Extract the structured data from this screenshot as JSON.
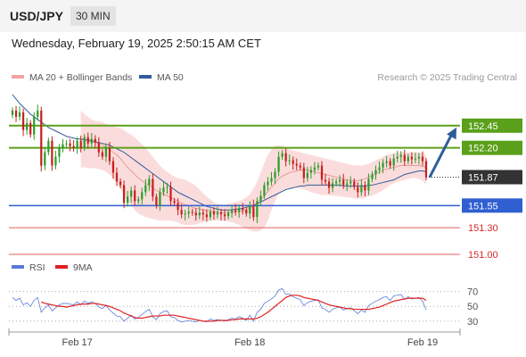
{
  "header": {
    "pair": "USD/JPY",
    "timeframe": "30 MIN",
    "datetime": "Wednesday, February 19, 2025 2:50:15 AM CET"
  },
  "colors": {
    "bollinger": "#f4a3a3",
    "ma20": "#e89a9a",
    "ma50": "#2f5d9a",
    "candle_up": "#2a9d2a",
    "candle_down": "#c81e1e",
    "resistance": "#5aa01a",
    "support": "#2f5fd0",
    "support_weak": "#e06060",
    "current": "#333333",
    "arrow": "#2f5d9a",
    "rsi": "#5a78d8",
    "rsi_ma": "#e02020"
  },
  "chart_data": [
    {
      "type": "candlestick",
      "legend": [
        {
          "name": "MA 20 + Bollinger Bands",
          "color": "#f4a3a3"
        },
        {
          "name": "MA 50",
          "color": "#2f5d9a"
        }
      ],
      "copyright": "Research © 2025 Trading Central",
      "x_ticks": [
        {
          "label": "Feb 17",
          "i": 18
        },
        {
          "label": "Feb 18",
          "i": 66
        },
        {
          "label": "Feb 19",
          "i": 114
        }
      ],
      "ylim": [
        150.95,
        152.86
      ],
      "levels": [
        {
          "value": 152.45,
          "label": "152.45",
          "kind": "resistance"
        },
        {
          "value": 152.2,
          "label": "152.20",
          "kind": "resistance"
        },
        {
          "value": 151.87,
          "label": "151.87",
          "kind": "current"
        },
        {
          "value": 151.55,
          "label": "151.55",
          "kind": "support"
        },
        {
          "value": 151.3,
          "label": "151.30",
          "kind": "support_weak"
        },
        {
          "value": 151.0,
          "label": "151.00",
          "kind": "support_weak"
        }
      ],
      "projection": {
        "from": 151.87,
        "to": 152.45
      },
      "close": [
        152.62,
        152.55,
        152.6,
        152.4,
        152.48,
        152.35,
        152.55,
        152.62,
        152.0,
        152.15,
        152.28,
        152.0,
        152.1,
        152.2,
        152.24,
        152.25,
        152.22,
        152.2,
        152.28,
        152.2,
        152.32,
        152.25,
        152.3,
        152.26,
        152.15,
        152.1,
        152.2,
        152.05,
        151.92,
        151.82,
        151.78,
        151.58,
        151.65,
        151.72,
        151.6,
        151.62,
        151.7,
        151.78,
        151.85,
        151.65,
        151.55,
        151.7,
        151.75,
        151.76,
        151.6,
        151.58,
        151.5,
        151.45,
        151.46,
        151.48,
        151.47,
        151.44,
        151.47,
        151.45,
        151.42,
        151.48,
        151.45,
        151.47,
        151.45,
        151.43,
        151.47,
        151.5,
        151.48,
        151.52,
        151.5,
        151.46,
        151.55,
        151.42,
        151.6,
        151.66,
        151.78,
        151.82,
        151.86,
        151.93,
        152.1,
        152.14,
        152.05,
        152.06,
        152.02,
        152.0,
        151.98,
        151.86,
        151.92,
        151.95,
        151.98,
        152.0,
        151.84,
        151.82,
        151.75,
        151.8,
        151.82,
        151.84,
        151.78,
        151.8,
        151.82,
        151.76,
        151.7,
        151.78,
        151.72,
        151.85,
        151.9,
        151.95,
        151.98,
        152.03,
        152.05,
        152.0,
        152.08,
        152.1,
        152.12,
        152.05,
        152.1,
        152.07,
        152.08,
        152.1,
        152.05,
        151.87
      ],
      "ma20": [
        null,
        null,
        null,
        null,
        null,
        null,
        null,
        null,
        null,
        null,
        null,
        null,
        null,
        null,
        null,
        null,
        null,
        null,
        null,
        152.3,
        152.29,
        152.28,
        152.27,
        152.26,
        152.25,
        152.23,
        152.21,
        152.18,
        152.15,
        152.12,
        152.08,
        152.03,
        151.98,
        151.94,
        151.9,
        151.86,
        151.83,
        151.8,
        151.78,
        151.75,
        151.72,
        151.7,
        151.68,
        151.66,
        151.64,
        151.62,
        151.6,
        151.58,
        151.56,
        151.55,
        151.53,
        151.52,
        151.51,
        151.5,
        151.49,
        151.49,
        151.48,
        151.48,
        151.47,
        151.47,
        151.47,
        151.47,
        151.48,
        151.48,
        151.49,
        151.5,
        151.52,
        151.55,
        151.58,
        151.62,
        151.66,
        151.71,
        151.76,
        151.8,
        151.85,
        151.88,
        151.9,
        151.92,
        151.93,
        151.94,
        151.95,
        151.95,
        151.95,
        151.94,
        151.93,
        151.92,
        151.91,
        151.9,
        151.89,
        151.88,
        151.87,
        151.86,
        151.85,
        151.84,
        151.83,
        151.83,
        151.83,
        151.84,
        151.85,
        151.87,
        151.89,
        151.91,
        151.93,
        151.95,
        151.96,
        151.97,
        151.98,
        151.99,
        152.0,
        152.0,
        152.0,
        152.0,
        152.0,
        152.0,
        151.99,
        151.98
      ],
      "bb_upper": [
        null,
        null,
        null,
        null,
        null,
        null,
        null,
        null,
        null,
        null,
        null,
        null,
        null,
        null,
        null,
        null,
        null,
        null,
        null,
        152.62,
        152.58,
        152.55,
        152.52,
        152.5,
        152.5,
        152.49,
        152.47,
        152.46,
        152.45,
        152.43,
        152.42,
        152.4,
        152.37,
        152.35,
        152.32,
        152.28,
        152.24,
        152.2,
        152.15,
        152.1,
        152.05,
        152.0,
        151.96,
        151.93,
        151.9,
        151.88,
        151.86,
        151.85,
        151.84,
        151.82,
        151.8,
        151.77,
        151.73,
        151.69,
        151.65,
        151.62,
        151.59,
        151.57,
        151.56,
        151.56,
        151.57,
        151.58,
        151.59,
        151.6,
        151.62,
        151.64,
        151.68,
        151.74,
        151.82,
        151.92,
        152.03,
        152.12,
        152.18,
        152.22,
        152.23,
        152.22,
        152.2,
        152.18,
        152.17,
        152.16,
        152.15,
        152.14,
        152.13,
        152.12,
        152.11,
        152.1,
        152.09,
        152.08,
        152.07,
        152.06,
        152.05,
        152.04,
        152.03,
        152.02,
        152.01,
        152.0,
        152.0,
        152.0,
        152.01,
        152.02,
        152.04,
        152.06,
        152.08,
        152.1,
        152.12,
        152.13,
        152.14,
        152.15,
        152.15,
        152.15,
        152.15,
        152.15,
        152.15,
        152.15,
        152.14,
        152.12
      ],
      "bb_lower": [
        null,
        null,
        null,
        null,
        null,
        null,
        null,
        null,
        null,
        null,
        null,
        null,
        null,
        null,
        null,
        null,
        null,
        null,
        null,
        151.98,
        151.98,
        151.97,
        151.97,
        151.97,
        151.96,
        151.95,
        151.93,
        151.9,
        151.85,
        151.8,
        151.74,
        151.66,
        151.6,
        151.55,
        151.5,
        151.46,
        151.44,
        151.42,
        151.41,
        151.4,
        151.39,
        151.38,
        151.38,
        151.38,
        151.38,
        151.37,
        151.36,
        151.34,
        151.33,
        151.33,
        151.33,
        151.34,
        151.35,
        151.36,
        151.37,
        151.38,
        151.38,
        151.38,
        151.38,
        151.38,
        151.37,
        151.36,
        151.35,
        151.33,
        151.31,
        151.29,
        151.27,
        151.26,
        151.26,
        151.27,
        151.3,
        151.38,
        151.5,
        151.6,
        151.68,
        151.72,
        151.74,
        151.75,
        151.75,
        151.75,
        151.74,
        151.73,
        151.72,
        151.7,
        151.69,
        151.68,
        151.67,
        151.67,
        151.67,
        151.66,
        151.66,
        151.65,
        151.65,
        151.64,
        151.64,
        151.63,
        151.63,
        151.63,
        151.64,
        151.65,
        151.66,
        151.68,
        151.7,
        151.72,
        151.75,
        151.78,
        151.8,
        151.82,
        151.83,
        151.84,
        151.85,
        151.86,
        151.86,
        151.85,
        151.83,
        151.78
      ],
      "ma50": [
        152.8,
        152.75,
        152.7,
        152.66,
        152.62,
        152.58,
        152.55,
        152.52,
        152.49,
        152.46,
        152.43,
        152.41,
        152.39,
        152.37,
        152.35,
        152.33,
        152.32,
        152.31,
        152.3,
        152.3,
        152.29,
        152.29,
        152.28,
        152.27,
        152.26,
        152.25,
        152.24,
        152.23,
        152.21,
        152.19,
        152.17,
        152.15,
        152.12,
        152.09,
        152.06,
        152.03,
        152.0,
        151.97,
        151.94,
        151.91,
        151.88,
        151.85,
        151.82,
        151.79,
        151.76,
        151.73,
        151.7,
        151.68,
        151.66,
        151.64,
        151.62,
        151.6,
        151.58,
        151.56,
        151.54,
        151.53,
        151.52,
        151.51,
        151.5,
        151.5,
        151.5,
        151.5,
        151.51,
        151.51,
        151.52,
        151.53,
        151.54,
        151.55,
        151.57,
        151.59,
        151.61,
        151.63,
        151.65,
        151.67,
        151.69,
        151.71,
        151.73,
        151.74,
        151.75,
        151.76,
        151.77,
        151.77,
        151.78,
        151.78,
        151.78,
        151.78,
        151.78,
        151.78,
        151.78,
        151.78,
        151.78,
        151.78,
        151.77,
        151.77,
        151.77,
        151.77,
        151.77,
        151.77,
        151.77,
        151.78,
        151.78,
        151.79,
        151.8,
        151.81,
        151.82,
        151.83,
        151.84,
        151.86,
        151.88,
        151.9,
        151.91,
        151.92,
        151.93,
        151.94,
        151.94,
        151.93
      ]
    },
    {
      "type": "line",
      "legend": [
        {
          "name": "RSI",
          "color": "#5a78d8"
        },
        {
          "name": "9MA",
          "color": "#e02020"
        }
      ],
      "y_ticks": [
        70,
        50,
        30
      ],
      "ylim": [
        25,
        78
      ],
      "rsi": [
        62,
        58,
        61,
        52,
        55,
        50,
        58,
        62,
        42,
        48,
        52,
        44,
        48,
        52,
        54,
        54,
        53,
        52,
        56,
        52,
        57,
        54,
        56,
        54,
        49,
        47,
        52,
        45,
        41,
        37,
        36,
        30,
        34,
        38,
        33,
        35,
        39,
        43,
        46,
        36,
        32,
        40,
        43,
        44,
        36,
        35,
        31,
        29,
        30,
        31,
        30,
        29,
        31,
        30,
        29,
        33,
        31,
        32,
        31,
        30,
        32,
        34,
        33,
        36,
        34,
        31,
        38,
        30,
        42,
        46,
        54,
        57,
        60,
        64,
        72,
        74,
        66,
        67,
        63,
        61,
        59,
        51,
        55,
        57,
        58,
        59,
        48,
        46,
        42,
        46,
        48,
        49,
        45,
        47,
        48,
        44,
        40,
        45,
        42,
        51,
        54,
        57,
        59,
        62,
        63,
        58,
        64,
        65,
        66,
        59,
        63,
        60,
        61,
        62,
        57,
        45
      ],
      "rsi_ma": [
        null,
        null,
        null,
        null,
        null,
        null,
        null,
        null,
        56,
        54,
        53,
        52,
        51,
        50,
        50,
        49,
        50,
        51,
        52,
        53,
        53,
        53,
        54,
        54,
        53,
        52,
        51,
        50,
        48,
        46,
        44,
        41,
        39,
        37,
        35,
        34,
        34,
        35,
        36,
        37,
        37,
        37,
        38,
        38,
        38,
        38,
        37,
        36,
        35,
        34,
        33,
        32,
        31,
        30,
        30,
        30,
        30,
        31,
        31,
        31,
        31,
        32,
        32,
        33,
        33,
        33,
        33,
        33,
        34,
        36,
        39,
        42,
        46,
        50,
        54,
        58,
        62,
        64,
        65,
        65,
        64,
        62,
        61,
        60,
        59,
        58,
        56,
        54,
        52,
        51,
        50,
        49,
        48,
        47,
        47,
        46,
        46,
        46,
        46,
        46,
        47,
        48,
        49,
        51,
        53,
        55,
        57,
        58,
        59,
        60,
        61,
        61,
        61,
        61,
        61,
        58
      ]
    }
  ]
}
